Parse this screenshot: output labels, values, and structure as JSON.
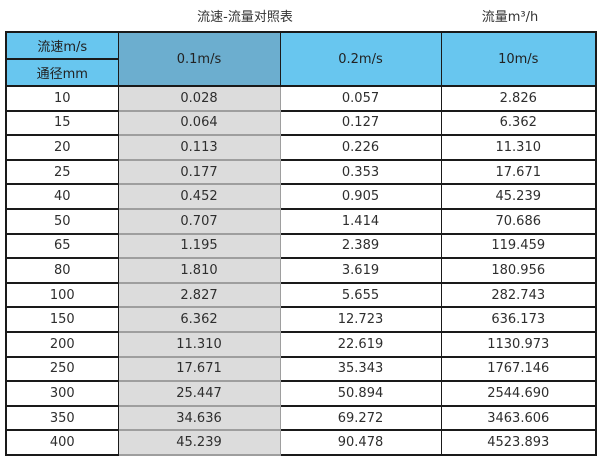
{
  "titles": {
    "main": "流速-流量对照表",
    "right": "流量m³/h"
  },
  "table": {
    "corner_top": "流速m/s",
    "corner_bottom": "通径mm",
    "velocity_columns": [
      "0.1m/s",
      "0.2m/s",
      "10m/s"
    ],
    "rows": [
      {
        "dn": "10",
        "values": [
          "0.028",
          "0.057",
          "2.826"
        ]
      },
      {
        "dn": "15",
        "values": [
          "0.064",
          "0.127",
          "6.362"
        ]
      },
      {
        "dn": "20",
        "values": [
          "0.113",
          "0.226",
          "11.310"
        ]
      },
      {
        "dn": "25",
        "values": [
          "0.177",
          "0.353",
          "17.671"
        ]
      },
      {
        "dn": "40",
        "values": [
          "0.452",
          "0.905",
          "45.239"
        ]
      },
      {
        "dn": "50",
        "values": [
          "0.707",
          "1.414",
          "70.686"
        ]
      },
      {
        "dn": "65",
        "values": [
          "1.195",
          "2.389",
          "119.459"
        ]
      },
      {
        "dn": "80",
        "values": [
          "1.810",
          "3.619",
          "180.956"
        ]
      },
      {
        "dn": "100",
        "values": [
          "2.827",
          "5.655",
          "282.743"
        ]
      },
      {
        "dn": "150",
        "values": [
          "6.362",
          "12.723",
          "636.173"
        ]
      },
      {
        "dn": "200",
        "values": [
          "11.310",
          "22.619",
          "1130.973"
        ]
      },
      {
        "dn": "250",
        "values": [
          "17.671",
          "35.343",
          "1767.146"
        ]
      },
      {
        "dn": "300",
        "values": [
          "25.447",
          "50.894",
          "2544.690"
        ]
      },
      {
        "dn": "350",
        "values": [
          "34.636",
          "69.272",
          "3463.606"
        ]
      },
      {
        "dn": "400",
        "values": [
          "45.239",
          "90.478",
          "4523.893"
        ]
      }
    ]
  },
  "colors": {
    "header_light_blue": "#68C6EF",
    "header_dark_blue": "#6CAECF",
    "highlight_column_gray": "#DCDCDC",
    "gray_border": "#9E9E9E",
    "table_border": "#1A1A1A",
    "text": "#2E2E2E"
  },
  "chart_data": {
    "type": "table",
    "title": "流速-流量对照表",
    "units_label": "流量m³/h",
    "row_axis_label": "通径mm",
    "column_axis_label": "流速m/s",
    "columns": [
      "通径mm",
      "0.1m/s",
      "0.2m/s",
      "10m/s"
    ],
    "rows": [
      [
        10,
        0.028,
        0.057,
        2.826
      ],
      [
        15,
        0.064,
        0.127,
        6.362
      ],
      [
        20,
        0.113,
        0.226,
        11.31
      ],
      [
        25,
        0.177,
        0.353,
        17.671
      ],
      [
        40,
        0.452,
        0.905,
        45.239
      ],
      [
        50,
        0.707,
        1.414,
        70.686
      ],
      [
        65,
        1.195,
        2.389,
        119.459
      ],
      [
        80,
        1.81,
        3.619,
        180.956
      ],
      [
        100,
        2.827,
        5.655,
        282.743
      ],
      [
        150,
        6.362,
        12.723,
        636.173
      ],
      [
        200,
        11.31,
        22.619,
        1130.973
      ],
      [
        250,
        17.671,
        35.343,
        1767.146
      ],
      [
        300,
        25.447,
        50.894,
        2544.69
      ],
      [
        350,
        34.636,
        69.272,
        3463.606
      ],
      [
        400,
        45.239,
        90.478,
        4523.893
      ]
    ]
  }
}
